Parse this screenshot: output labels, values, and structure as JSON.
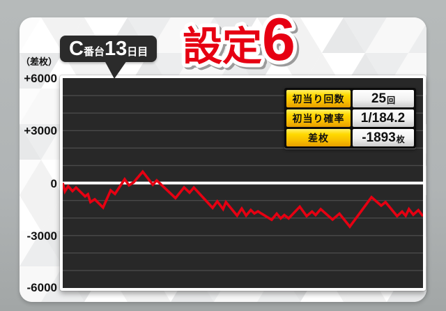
{
  "title": {
    "main": "設定",
    "number": "6",
    "color": "#e60012"
  },
  "machine_badge": {
    "unit_letter": "C",
    "unit_suffix": "番台",
    "day_number": "13",
    "day_suffix": "日目"
  },
  "y_axis": {
    "unit_label": "（差枚）",
    "ticks": [
      "+6000",
      "+3000",
      "0",
      "-3000",
      "-6000"
    ]
  },
  "stats_table": {
    "rows": [
      {
        "label": "初当り回数",
        "value": "25",
        "unit": "回"
      },
      {
        "label": "初当り確率",
        "value": "1/184.2",
        "unit": ""
      },
      {
        "label": "差枚",
        "value": "-1893",
        "unit": "枚"
      }
    ]
  },
  "chart_data": {
    "type": "line",
    "title": "設定6 C番台13日目 スランプグラフ",
    "ylabel": "差枚",
    "ylim": [
      -6000,
      6000
    ],
    "yticks_labeled": [
      6000,
      3000,
      0,
      -3000,
      -6000
    ],
    "grid_interval": 1000,
    "zero_line": true,
    "grid_on": true,
    "legend": "none",
    "plot_bg": "#282828",
    "grid_color": "#4a4a4a",
    "line_color": "#e60012",
    "final_value": -1893,
    "series": [
      {
        "name": "差枚",
        "x_unit": "percent_of_day",
        "points": [
          [
            0.0,
            0
          ],
          [
            0.6,
            -480
          ],
          [
            1.5,
            -180
          ],
          [
            2.7,
            -460
          ],
          [
            3.7,
            -260
          ],
          [
            6.2,
            -760
          ],
          [
            7.0,
            -640
          ],
          [
            7.7,
            -1090
          ],
          [
            8.9,
            -930
          ],
          [
            11.2,
            -1400
          ],
          [
            13.3,
            -420
          ],
          [
            14.5,
            -620
          ],
          [
            17.2,
            220
          ],
          [
            18.4,
            -130
          ],
          [
            19.7,
            40
          ],
          [
            22.2,
            650
          ],
          [
            25.0,
            -90
          ],
          [
            26.1,
            150
          ],
          [
            31.3,
            -860
          ],
          [
            33.7,
            -250
          ],
          [
            35.2,
            -550
          ],
          [
            36.4,
            -260
          ],
          [
            41.6,
            -1420
          ],
          [
            42.9,
            -1050
          ],
          [
            44.5,
            -1490
          ],
          [
            45.3,
            -1090
          ],
          [
            48.4,
            -1860
          ],
          [
            49.7,
            -1460
          ],
          [
            50.9,
            -1860
          ],
          [
            52.2,
            -1540
          ],
          [
            53.2,
            -1740
          ],
          [
            54.2,
            -1620
          ],
          [
            55.1,
            -1740
          ],
          [
            58.0,
            -2100
          ],
          [
            59.4,
            -1750
          ],
          [
            60.5,
            -2020
          ],
          [
            61.5,
            -1830
          ],
          [
            62.7,
            -2020
          ],
          [
            65.8,
            -1350
          ],
          [
            67.7,
            -1890
          ],
          [
            69.2,
            -1630
          ],
          [
            70.2,
            -1830
          ],
          [
            71.6,
            -1490
          ],
          [
            74.9,
            -2090
          ],
          [
            76.8,
            -1750
          ],
          [
            79.7,
            -2490
          ],
          [
            85.7,
            -810
          ],
          [
            88.4,
            -1290
          ],
          [
            89.6,
            -1090
          ],
          [
            92.8,
            -1890
          ],
          [
            94.2,
            -1630
          ],
          [
            95.2,
            -1870
          ],
          [
            96.1,
            -1490
          ],
          [
            97.3,
            -1810
          ],
          [
            98.7,
            -1550
          ],
          [
            100.0,
            -1893
          ]
        ]
      }
    ]
  }
}
